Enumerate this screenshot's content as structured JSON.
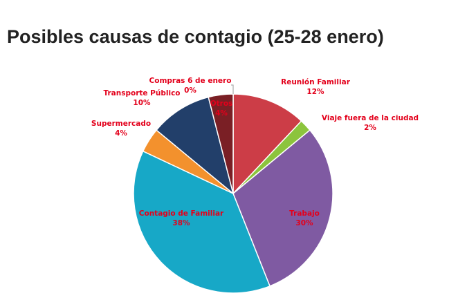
{
  "title": "Posibles causas de contagio (25-28 enero)",
  "chart_data": {
    "type": "pie",
    "title": "Posibles causas de contagio (25-28 enero)",
    "unit": "%",
    "label_color": "#e3001b",
    "slices": [
      {
        "label": "Reunión Familiar",
        "value": 12,
        "value_text": "12%",
        "color": "#cc3d47"
      },
      {
        "label": "Viaje fuera de la ciudad",
        "value": 2,
        "value_text": "2%",
        "color": "#8cc43d"
      },
      {
        "label": "Trabajo",
        "value": 30,
        "value_text": "30%",
        "color": "#7f5aa2"
      },
      {
        "label": "Contagio de Familiar",
        "value": 38,
        "value_text": "38%",
        "color": "#17a8c7"
      },
      {
        "label": "Supermercado",
        "value": 4,
        "value_text": "4%",
        "color": "#f3912d"
      },
      {
        "label": "Transporte Público",
        "value": 10,
        "value_text": "10%",
        "color": "#223f6a"
      },
      {
        "label": "Compras 6 de enero",
        "value": 0,
        "value_text": "0%",
        "color": "#555555"
      },
      {
        "label": "Otros",
        "value": 4,
        "value_text": "4%",
        "color": "#7a1f25"
      }
    ]
  }
}
